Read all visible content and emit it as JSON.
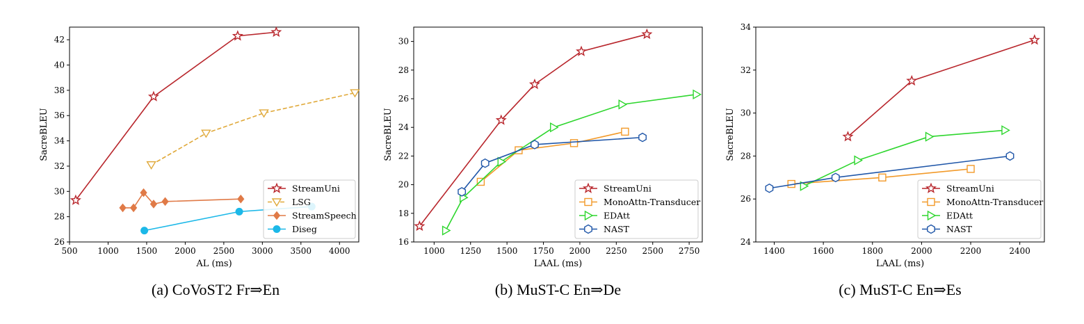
{
  "captions": [
    "(a) CoVoST2 Fr⇒En",
    "(b) MuST-C En⇒De",
    "(c) MuST-C En⇒Es"
  ],
  "chart_data": [
    {
      "type": "line",
      "xlabel": "AL (ms)",
      "ylabel": "SacreBLEU",
      "xlim": [
        500,
        4250
      ],
      "ylim": [
        26,
        43
      ],
      "xticks": [
        500,
        1000,
        1500,
        2000,
        2500,
        3000,
        3500,
        4000
      ],
      "yticks": [
        26,
        28,
        30,
        32,
        34,
        36,
        38,
        40,
        42
      ],
      "legend_position": "lower-right",
      "series": [
        {
          "name": "StreamUni",
          "color": "#b8262c",
          "marker": "star",
          "dash": "solid",
          "x": [
            580,
            1590,
            2680,
            3180
          ],
          "y": [
            29.3,
            37.5,
            42.3,
            42.6
          ]
        },
        {
          "name": "LSG",
          "color": "#e0a93a",
          "marker": "triangle-down",
          "dash": "dashed",
          "x": [
            1560,
            2270,
            3020,
            4200
          ],
          "y": [
            32.1,
            34.6,
            36.2,
            37.8
          ]
        },
        {
          "name": "StreamSpeech",
          "color": "#e07a47",
          "marker": "diamond",
          "dash": "solid",
          "x": [
            1190,
            1330,
            1460,
            1590,
            1740,
            2720
          ],
          "y": [
            28.7,
            28.7,
            29.9,
            29.0,
            29.2,
            29.4
          ]
        },
        {
          "name": "Diseg",
          "color": "#1cb8e8",
          "marker": "circle",
          "dash": "solid",
          "x": [
            1470,
            2700,
            3640
          ],
          "y": [
            26.9,
            28.4,
            28.8
          ]
        }
      ]
    },
    {
      "type": "line",
      "xlabel": "LAAL (ms)",
      "ylabel": "SacreBLEU",
      "xlim": [
        860,
        2840
      ],
      "ylim": [
        16,
        31
      ],
      "xticks": [
        1000,
        1250,
        1500,
        1750,
        2000,
        2250,
        2500,
        2750
      ],
      "yticks": [
        16,
        18,
        20,
        22,
        24,
        26,
        28,
        30
      ],
      "legend_position": "lower-right",
      "series": [
        {
          "name": "StreamUni",
          "color": "#b8262c",
          "marker": "star",
          "dash": "solid",
          "x": [
            900,
            1460,
            1690,
            2010,
            2460
          ],
          "y": [
            17.1,
            24.5,
            27.0,
            29.3,
            30.5
          ]
        },
        {
          "name": "MonoAttn-Transducer",
          "color": "#f29a2a",
          "marker": "square",
          "dash": "solid",
          "x": [
            1320,
            1580,
            1960,
            2310
          ],
          "y": [
            20.2,
            22.4,
            22.9,
            23.7
          ]
        },
        {
          "name": "EDAtt",
          "color": "#2ed62e",
          "marker": "triangle-right",
          "dash": "solid",
          "x": [
            1080,
            1200,
            1460,
            1820,
            2290,
            2800
          ],
          "y": [
            16.8,
            19.1,
            21.6,
            24.0,
            25.6,
            26.3
          ]
        },
        {
          "name": "NAST",
          "color": "#1f56a8",
          "marker": "hexagon",
          "dash": "solid",
          "x": [
            1190,
            1350,
            1690,
            2430
          ],
          "y": [
            19.5,
            21.5,
            22.8,
            23.3
          ]
        }
      ]
    },
    {
      "type": "line",
      "xlabel": "LAAL (ms)",
      "ylabel": "SacreBLEU",
      "xlim": [
        1325,
        2500
      ],
      "ylim": [
        24,
        34
      ],
      "xticks": [
        1400,
        1600,
        1800,
        2000,
        2200,
        2400
      ],
      "yticks": [
        24,
        26,
        28,
        30,
        32,
        34
      ],
      "legend_position": "lower-right",
      "series": [
        {
          "name": "StreamUni",
          "color": "#b8262c",
          "marker": "star",
          "dash": "solid",
          "x": [
            1700,
            1960,
            2460
          ],
          "y": [
            28.9,
            31.5,
            33.4
          ]
        },
        {
          "name": "MonoAttn-Transducer",
          "color": "#f29a2a",
          "marker": "square",
          "dash": "solid",
          "x": [
            1470,
            1840,
            2200
          ],
          "y": [
            26.7,
            27.0,
            27.4
          ]
        },
        {
          "name": "EDAtt",
          "color": "#2ed62e",
          "marker": "triangle-right",
          "dash": "solid",
          "x": [
            1520,
            1740,
            2030,
            2340
          ],
          "y": [
            26.6,
            27.8,
            28.9,
            29.2
          ]
        },
        {
          "name": "NAST",
          "color": "#1f56a8",
          "marker": "hexagon",
          "dash": "solid",
          "x": [
            1380,
            1650,
            2360
          ],
          "y": [
            26.5,
            27.0,
            28.0
          ]
        }
      ]
    }
  ]
}
